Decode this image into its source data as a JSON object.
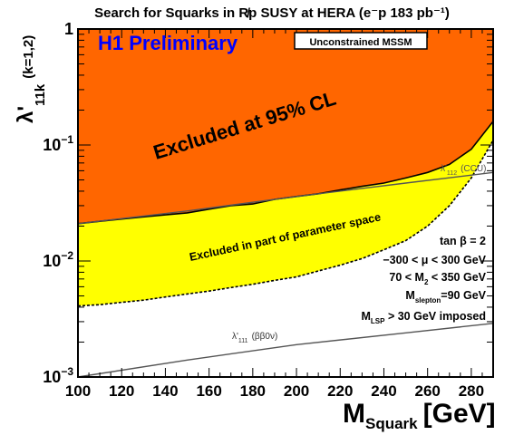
{
  "chart_data": {
    "type": "area",
    "title": "Search for Squarks in R̸p SUSY at HERA (e⁻p 183 pb⁻¹)",
    "xlabel": "M",
    "xlabel_sub": "Squark",
    "xlabel_unit": "[GeV]",
    "ylabel": "λ'",
    "ylabel_sub": "11k",
    "ylabel_index": "(k=1,2)",
    "xlim": [
      100,
      290
    ],
    "ylim": [
      0.001,
      1.0
    ],
    "y_scale": "log",
    "x_ticks": [
      100,
      120,
      140,
      160,
      180,
      200,
      220,
      240,
      260,
      280
    ],
    "x_tick_labels": [
      "100",
      "120",
      "140",
      "160",
      "180",
      "200",
      "220",
      "240",
      "260",
      "280"
    ],
    "y_ticks": [
      0.001,
      0.01,
      0.1,
      1
    ],
    "y_tick_labels": [
      {
        "base": "10",
        "exp": "−3"
      },
      {
        "base": "10",
        "exp": "−2"
      },
      {
        "base": "10",
        "exp": "−1"
      },
      {
        "base": "1",
        "exp": ""
      }
    ],
    "grid": false,
    "series": [
      {
        "role": "excluded_95CL_boundary",
        "color": "#ff6600",
        "x": [
          100,
          110,
          120,
          130,
          140,
          150,
          160,
          170,
          180,
          190,
          200,
          210,
          220,
          230,
          240,
          250,
          260,
          270,
          280,
          290
        ],
        "y": [
          0.021,
          0.022,
          0.023,
          0.024,
          0.025,
          0.026,
          0.028,
          0.03,
          0.031,
          0.034,
          0.036,
          0.038,
          0.041,
          0.044,
          0.047,
          0.052,
          0.058,
          0.068,
          0.092,
          0.16
        ]
      },
      {
        "role": "excluded_part_of_parameter_space_boundary",
        "color": "#ffff00",
        "x": [
          100,
          110,
          120,
          130,
          140,
          150,
          160,
          170,
          180,
          190,
          200,
          210,
          220,
          230,
          240,
          250,
          260,
          270,
          280,
          290
        ],
        "y": [
          0.0041,
          0.0042,
          0.0044,
          0.0046,
          0.0049,
          0.0052,
          0.0055,
          0.0059,
          0.0063,
          0.0068,
          0.0073,
          0.0082,
          0.0092,
          0.0105,
          0.0125,
          0.015,
          0.02,
          0.03,
          0.052,
          0.11
        ]
      },
      {
        "role": "constraint_line",
        "label": "λ'112 (CCU)",
        "color": "#555555",
        "x": [
          100,
          150,
          200,
          250,
          290
        ],
        "y": [
          0.021,
          0.027,
          0.036,
          0.047,
          0.058
        ]
      },
      {
        "role": "constraint_line",
        "label": "λ'111 (ββ0ν)",
        "color": "#555555",
        "x": [
          100,
          150,
          200,
          250,
          290
        ],
        "y": [
          0.001,
          0.0014,
          0.0019,
          0.0024,
          0.0029
        ]
      }
    ]
  },
  "texts": {
    "experiment": "H1 Preliminary",
    "model_box": "Unconstrained MSSM",
    "excluded_label": "Excluded at 95% CL",
    "partial_label": "Excluded in part of parameter space",
    "ccu_label": "λ'",
    "ccu_sub": "112",
    "ccu_tag": "(CCU)",
    "bb_label": "λ'",
    "bb_sub": "111",
    "bb_tag": "(ββ0ν)",
    "params": [
      "tan β = 2",
      "−300 < μ  < 300 GeV",
      "70 < M",
      "M",
      "M"
    ],
    "p3_sub": "2",
    "p3_rest": " < 350 GeV",
    "p4_sub": "slepton",
    "p4_rest": "=90 GeV",
    "p5_sub": "LSP",
    "p5_rest": " > 30 GeV imposed"
  },
  "colors": {
    "excluded": "#ff6600",
    "partial": "#ffff00",
    "experiment_text": "#0000ff",
    "lines": "#555555"
  }
}
